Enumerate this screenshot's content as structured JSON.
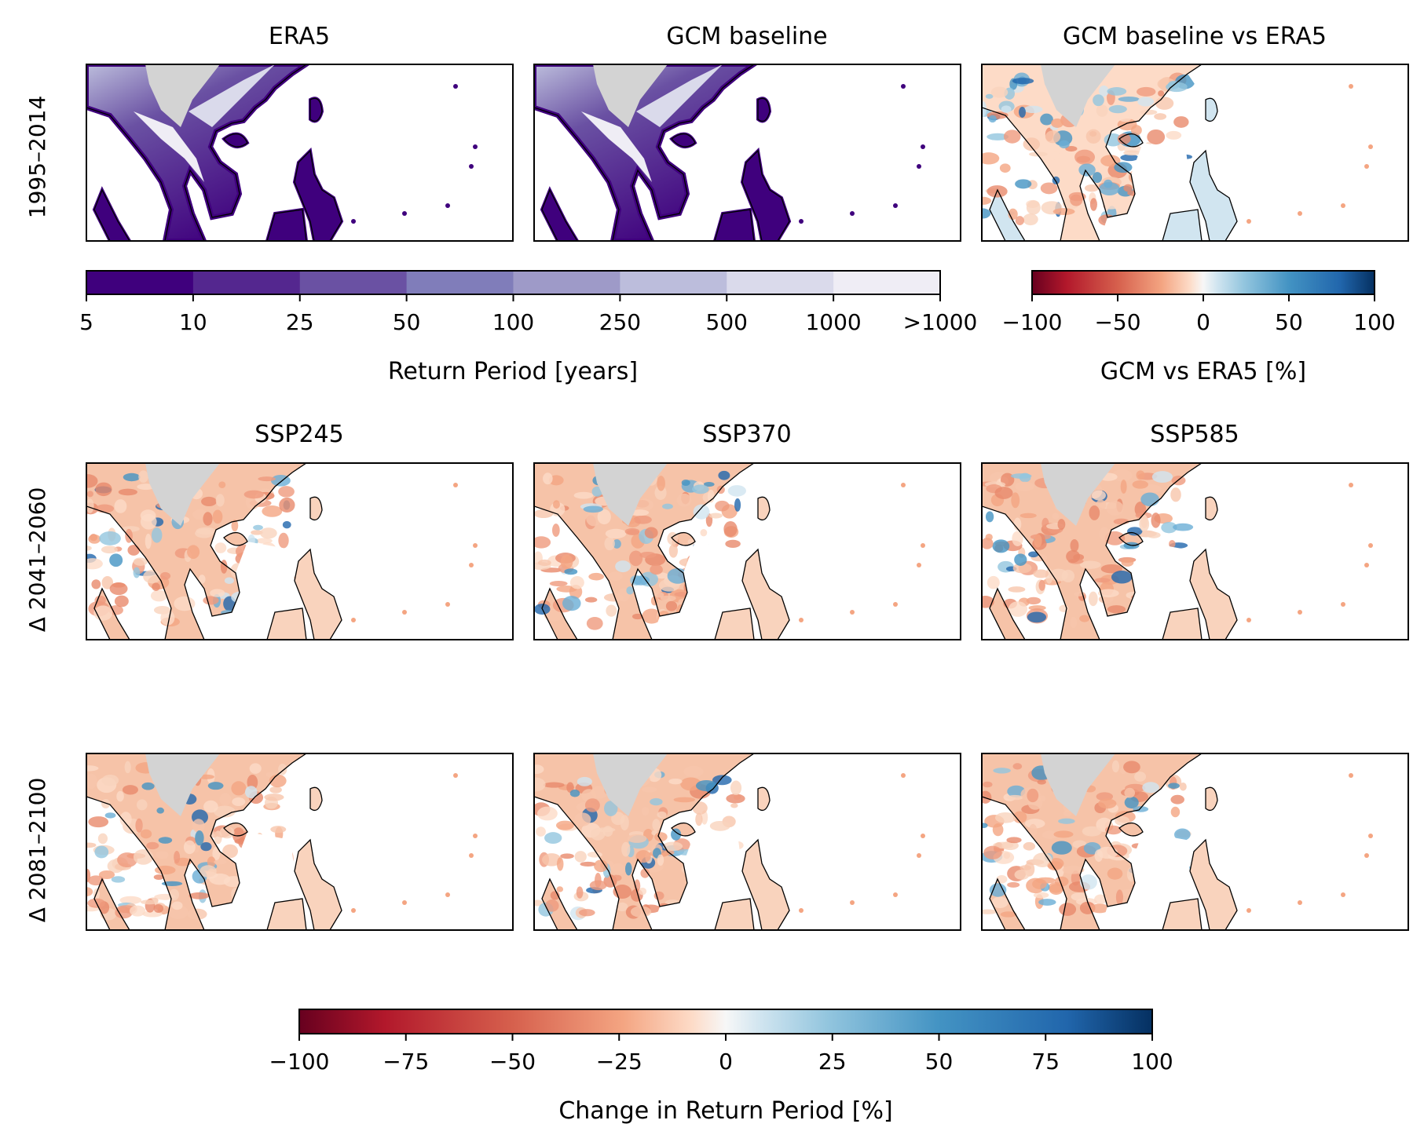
{
  "figure": {
    "row_labels": [
      "1995–2014",
      "Δ 2041–2060",
      "Δ 2081–2100"
    ],
    "panel_titles_row1": [
      "ERA5",
      "GCM baseline",
      "GCM baseline vs ERA5"
    ],
    "panel_titles_row2": [
      "SSP245",
      "SSP370",
      "SSP585"
    ]
  },
  "colorbars": {
    "return_period": {
      "label": "Return Period [years]",
      "ticks": [
        "5",
        "10",
        "25",
        "50",
        "100",
        "250",
        "500",
        "1000",
        ">1000"
      ],
      "colors": [
        "#3f007d",
        "#54278f",
        "#6a51a3",
        "#807dba",
        "#9e9ac8",
        "#bcbddc",
        "#dadaeb",
        "#efedf5"
      ]
    },
    "gcm_vs_era5": {
      "label": "GCM vs ERA5 [%]",
      "ticks": [
        "−100",
        "−50",
        "0",
        "50",
        "100"
      ],
      "range": [
        -100,
        100
      ]
    },
    "change": {
      "label": "Change in Return Period [%]",
      "ticks": [
        "−100",
        "−75",
        "−50",
        "−25",
        "0",
        "25",
        "50",
        "75",
        "100"
      ],
      "range": [
        -100,
        100
      ]
    }
  },
  "chart_data": [
    {
      "type": "heatmap",
      "title": "ERA5",
      "colorbar": "Return Period [years]",
      "categories": [
        "5",
        "10",
        "25",
        "50",
        "100",
        "250",
        "500",
        "1000",
        ">1000"
      ]
    },
    {
      "type": "heatmap",
      "title": "GCM baseline",
      "colorbar": "Return Period [years]",
      "categories": [
        "5",
        "10",
        "25",
        "50",
        "100",
        "250",
        "500",
        "1000",
        ">1000"
      ]
    },
    {
      "type": "heatmap",
      "title": "GCM baseline vs ERA5",
      "colorbar": "GCM vs ERA5 [%]",
      "range": [
        -100,
        100
      ]
    },
    {
      "type": "heatmap",
      "title": "SSP245",
      "colorbar": "Change in Return Period [%]",
      "range": [
        -100,
        100
      ]
    },
    {
      "type": "heatmap",
      "title": "SSP370",
      "colorbar": "Change in Return Period [%]",
      "range": [
        -100,
        100
      ]
    },
    {
      "type": "heatmap",
      "title": "SSP585",
      "colorbar": "Change in Return Period [%]",
      "range": [
        -100,
        100
      ]
    }
  ],
  "map_colors": {
    "no_data": "#d3d3d3",
    "ocean": "#ffffff",
    "coast": "#000000"
  }
}
